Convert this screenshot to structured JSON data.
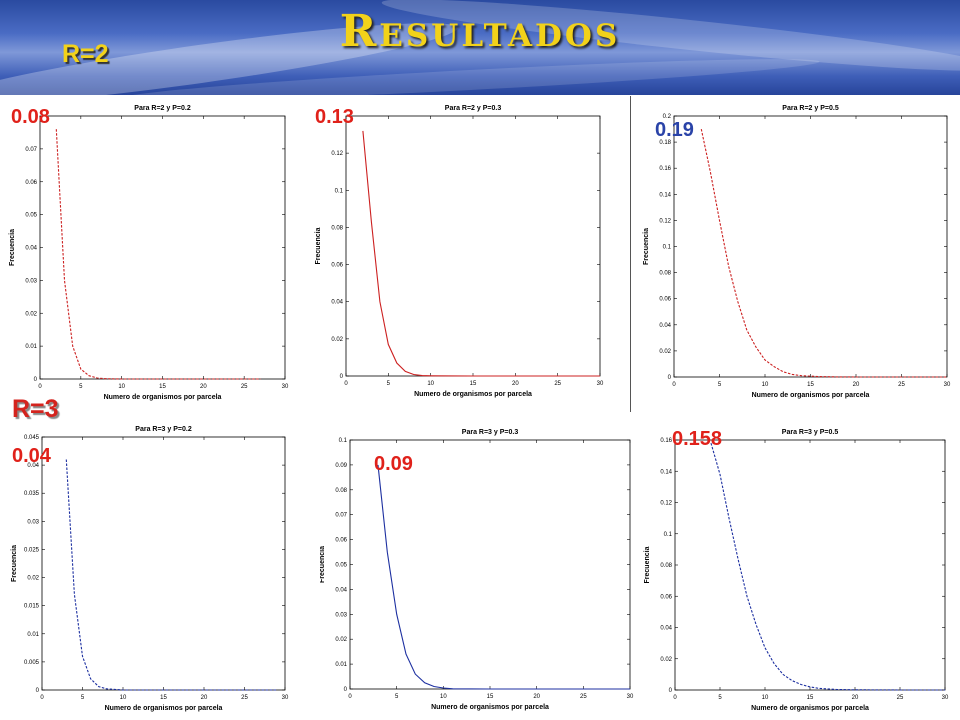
{
  "header": {
    "title": "Resultados",
    "r2_label": "R=2",
    "r3_label": "R=3"
  },
  "colors": {
    "header_bg": "#3f5fb8",
    "title": "#f2d21a",
    "r3_label": "#d4231d",
    "red_series": "#cc2020",
    "blue_series": "#1c2fa0",
    "annotation_red": "#e0211a",
    "annotation_blue": "#2a43a8"
  },
  "chart_data": [
    {
      "type": "line",
      "title": "Para R=2 y P=0.2",
      "xlabel": "Numero de organismos por parcela",
      "ylabel": "Frecuencia",
      "xlim": [
        0,
        30
      ],
      "ylim": [
        0,
        0.08
      ],
      "xticks": [
        0,
        5,
        10,
        15,
        20,
        25,
        30
      ],
      "xtick_labels": [
        "0",
        "5",
        "10",
        "15",
        "20",
        "25",
        "30"
      ],
      "yticks": [
        0,
        0.01,
        0.02,
        0.03,
        0.04,
        0.05,
        0.06,
        0.07
      ],
      "ytick_labels": [
        "0",
        "0.01",
        "0.02",
        "0.03",
        "0.04",
        "0.05",
        "0.06",
        "0.07"
      ],
      "color": "#cc2020",
      "dashed": true,
      "annotation": "0.08",
      "series": [
        {
          "x": [
            2,
            3,
            4,
            5,
            6,
            7,
            8,
            10,
            15,
            20,
            27
          ],
          "y": [
            0.076,
            0.03,
            0.01,
            0.003,
            0.001,
            0.0003,
            0.0001,
            0,
            0,
            0,
            0
          ]
        }
      ]
    },
    {
      "type": "line",
      "title": "Para R=2 y P=0.3",
      "xlabel": "Numero de organismos por parcela",
      "ylabel": "Frecuencia",
      "xlim": [
        0,
        30
      ],
      "ylim": [
        0,
        0.14
      ],
      "xticks": [
        0,
        5,
        10,
        15,
        20,
        25,
        30
      ],
      "xtick_labels": [
        "0",
        "5",
        "10",
        "15",
        "20",
        "25",
        "30"
      ],
      "yticks": [
        0,
        0.02,
        0.04,
        0.06,
        0.08,
        0.1,
        0.12
      ],
      "ytick_labels": [
        "0",
        "0.02",
        "0.04",
        "0.06",
        "0.08",
        "0.1",
        "0.12"
      ],
      "color": "#cc2020",
      "dashed": false,
      "annotation": "0.13",
      "series": [
        {
          "x": [
            2,
            3,
            4,
            5,
            6,
            7,
            8,
            9,
            10,
            15,
            20,
            30
          ],
          "y": [
            0.132,
            0.083,
            0.04,
            0.017,
            0.007,
            0.0025,
            0.0008,
            0.0002,
            0.0001,
            0,
            0,
            0
          ]
        }
      ]
    },
    {
      "type": "line",
      "title": "Para R=2 y P=0.5",
      "xlabel": "Numero de organismos por parcela",
      "ylabel": "Frecuencia",
      "xlim": [
        0,
        30
      ],
      "ylim": [
        0,
        0.2
      ],
      "xticks": [
        0,
        5,
        10,
        15,
        20,
        25,
        30
      ],
      "xtick_labels": [
        "0",
        "5",
        "10",
        "15",
        "20",
        "25",
        "30"
      ],
      "yticks": [
        0,
        0.02,
        0.04,
        0.06,
        0.08,
        0.1,
        0.12,
        0.14,
        0.16,
        0.18,
        0.2
      ],
      "ytick_labels": [
        "0",
        "0.02",
        "0.04",
        "0.06",
        "0.08",
        "0.1",
        "0.12",
        "0.14",
        "0.16",
        "0.18",
        "0.2"
      ],
      "color": "#cc2020",
      "dashed": true,
      "annotation": "0.19",
      "series": [
        {
          "x": [
            3,
            4,
            5,
            6,
            7,
            8,
            9,
            10,
            11,
            12,
            13,
            14,
            16,
            18,
            20,
            25,
            30
          ],
          "y": [
            0.19,
            0.157,
            0.12,
            0.085,
            0.058,
            0.036,
            0.023,
            0.013,
            0.008,
            0.004,
            0.002,
            0.001,
            0.0003,
            0.0001,
            0,
            0,
            0
          ]
        }
      ]
    },
    {
      "type": "line",
      "title": "Para R=3 y P=0.2",
      "xlabel": "Numero de organismos por parcela",
      "ylabel": "Frecuencia",
      "xlim": [
        0,
        30
      ],
      "ylim": [
        0,
        0.045
      ],
      "xticks": [
        0,
        5,
        10,
        15,
        20,
        25,
        30
      ],
      "xtick_labels": [
        "0",
        "5",
        "10",
        "15",
        "20",
        "25",
        "30"
      ],
      "yticks": [
        0,
        0.005,
        0.01,
        0.015,
        0.02,
        0.025,
        0.03,
        0.035,
        0.04,
        0.045
      ],
      "ytick_labels": [
        "0",
        "0.005",
        "0.01",
        "0.015",
        "0.02",
        "0.025",
        "0.03",
        "0.035",
        "0.04",
        "0.045"
      ],
      "color": "#1c2fa0",
      "dashed": true,
      "annotation": "0.04",
      "series": [
        {
          "x": [
            3,
            4,
            5,
            6,
            7,
            8,
            9,
            10,
            15,
            20,
            29
          ],
          "y": [
            0.041,
            0.017,
            0.006,
            0.002,
            0.0006,
            0.0002,
            0.0001,
            0,
            0,
            0,
            0
          ]
        }
      ]
    },
    {
      "type": "line",
      "title": "Para R=3 y P=0.3",
      "xlabel": "Numero de organismos por parcela",
      "ylabel": "Frecuencia",
      "xlim": [
        0,
        30
      ],
      "ylim": [
        0,
        0.1
      ],
      "xticks": [
        0,
        5,
        10,
        15,
        20,
        25,
        30
      ],
      "xtick_labels": [
        "0",
        "5",
        "10",
        "15",
        "20",
        "25",
        "30"
      ],
      "yticks": [
        0,
        0.01,
        0.02,
        0.03,
        0.04,
        0.05,
        0.06,
        0.07,
        0.08,
        0.09,
        0.1
      ],
      "ytick_labels": [
        "0",
        "0.01",
        "0.02",
        "0.03",
        "0.04",
        "0.05",
        "0.06",
        "0.07",
        "0.08",
        "0.09",
        "0.1"
      ],
      "color": "#1c2fa0",
      "dashed": false,
      "annotation": "0.09",
      "series": [
        {
          "x": [
            3,
            4,
            5,
            6,
            7,
            8,
            9,
            10,
            11,
            15,
            20,
            30
          ],
          "y": [
            0.09,
            0.055,
            0.03,
            0.014,
            0.006,
            0.0025,
            0.001,
            0.0004,
            0.0001,
            0,
            0,
            0
          ]
        }
      ]
    },
    {
      "type": "line",
      "title": "Para R=3 y P=0.5",
      "xlabel": "Numero de organismos por parcela",
      "ylabel": "Frecuencia",
      "xlim": [
        0,
        30
      ],
      "ylim": [
        0,
        0.16
      ],
      "xticks": [
        0,
        5,
        10,
        15,
        20,
        25,
        30
      ],
      "xtick_labels": [
        "0",
        "5",
        "10",
        "15",
        "20",
        "25",
        "30"
      ],
      "yticks": [
        0,
        0.02,
        0.04,
        0.06,
        0.08,
        0.1,
        0.12,
        0.14,
        0.16
      ],
      "ytick_labels": [
        "0",
        "0.02",
        "0.04",
        "0.06",
        "0.08",
        "0.1",
        "0.12",
        "0.14",
        "0.16"
      ],
      "color": "#1c2fa0",
      "dashed": true,
      "annotation": "0.158",
      "series": [
        {
          "x": [
            4,
            5,
            6,
            7,
            8,
            9,
            10,
            11,
            12,
            13,
            14,
            15,
            16,
            18,
            20,
            25,
            30
          ],
          "y": [
            0.158,
            0.138,
            0.11,
            0.084,
            0.06,
            0.042,
            0.027,
            0.017,
            0.01,
            0.006,
            0.0035,
            0.002,
            0.001,
            0.0003,
            0.0001,
            0,
            0
          ]
        }
      ]
    }
  ]
}
